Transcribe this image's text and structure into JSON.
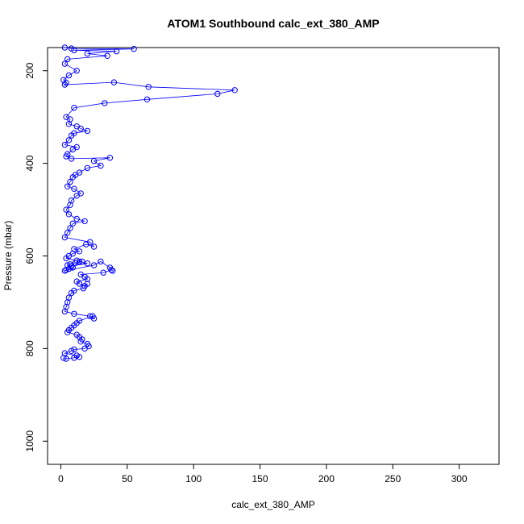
{
  "chart_data": {
    "type": "scatter",
    "title": "ATOM1 Southbound calc_ext_380_AMP",
    "xlabel": "calc_ext_380_AMP",
    "ylabel": "Pressure (mbar)",
    "xlim": [
      -10,
      330
    ],
    "ylim": [
      1050,
      150
    ],
    "y_reversed": true,
    "x_ticks": [
      0,
      50,
      100,
      150,
      200,
      250,
      300
    ],
    "y_ticks": [
      200,
      400,
      600,
      800,
      1000
    ],
    "x_tick_labels": [
      "0",
      "50",
      "100",
      "150",
      "200",
      "250",
      "300"
    ],
    "y_tick_labels": [
      "200",
      "400",
      "600",
      "800",
      "1000"
    ],
    "grid": false,
    "series_color": "#0000ff",
    "marker": "open-circle",
    "connected": true,
    "series": [
      {
        "x": [
          3,
          8,
          55,
          10,
          42,
          20,
          35,
          5,
          3,
          12,
          6,
          2,
          4,
          3,
          40,
          66,
          131,
          118,
          65,
          33,
          10,
          4,
          7,
          6,
          12,
          15,
          20,
          10,
          8,
          6,
          3,
          12,
          9,
          5,
          4,
          8,
          37,
          25,
          30,
          20,
          14,
          11,
          9,
          7,
          5,
          10,
          15,
          12,
          8,
          7,
          4,
          6,
          12,
          18,
          9,
          7,
          5,
          3,
          22,
          25,
          19,
          10,
          14,
          9,
          6,
          4,
          12,
          16,
          11,
          7,
          5,
          8,
          20,
          14,
          9,
          6,
          4,
          3,
          25,
          30,
          37,
          39,
          38,
          32,
          15,
          18,
          20,
          12,
          14,
          18,
          20,
          17,
          10,
          8,
          6,
          5,
          4,
          3,
          10,
          22,
          25,
          24,
          14,
          12,
          10,
          8,
          6,
          5,
          12,
          14,
          16,
          15,
          20,
          21,
          18,
          10,
          8,
          3,
          12,
          14,
          10,
          4,
          2
        ],
        "y": [
          150,
          152,
          153,
          156,
          158,
          163,
          168,
          175,
          185,
          200,
          210,
          220,
          226,
          230,
          225,
          235,
          242,
          250,
          262,
          270,
          280,
          300,
          305,
          315,
          320,
          325,
          330,
          335,
          340,
          350,
          360,
          365,
          370,
          380,
          385,
          390,
          388,
          395,
          405,
          410,
          420,
          425,
          430,
          440,
          450,
          455,
          465,
          470,
          480,
          490,
          500,
          510,
          520,
          525,
          530,
          540,
          550,
          560,
          570,
          580,
          575,
          585,
          590,
          595,
          600,
          605,
          610,
          612,
          615,
          618,
          620,
          622,
          616,
          612,
          625,
          628,
          630,
          632,
          620,
          612,
          625,
          632,
          630,
          636,
          640,
          645,
          650,
          655,
          660,
          665,
          660,
          670,
          675,
          680,
          690,
          700,
          710,
          720,
          725,
          730,
          735,
          730,
          740,
          745,
          750,
          755,
          760,
          765,
          770,
          775,
          780,
          785,
          790,
          795,
          800,
          802,
          805,
          810,
          815,
          818,
          820,
          822,
          820
        ]
      }
    ]
  }
}
